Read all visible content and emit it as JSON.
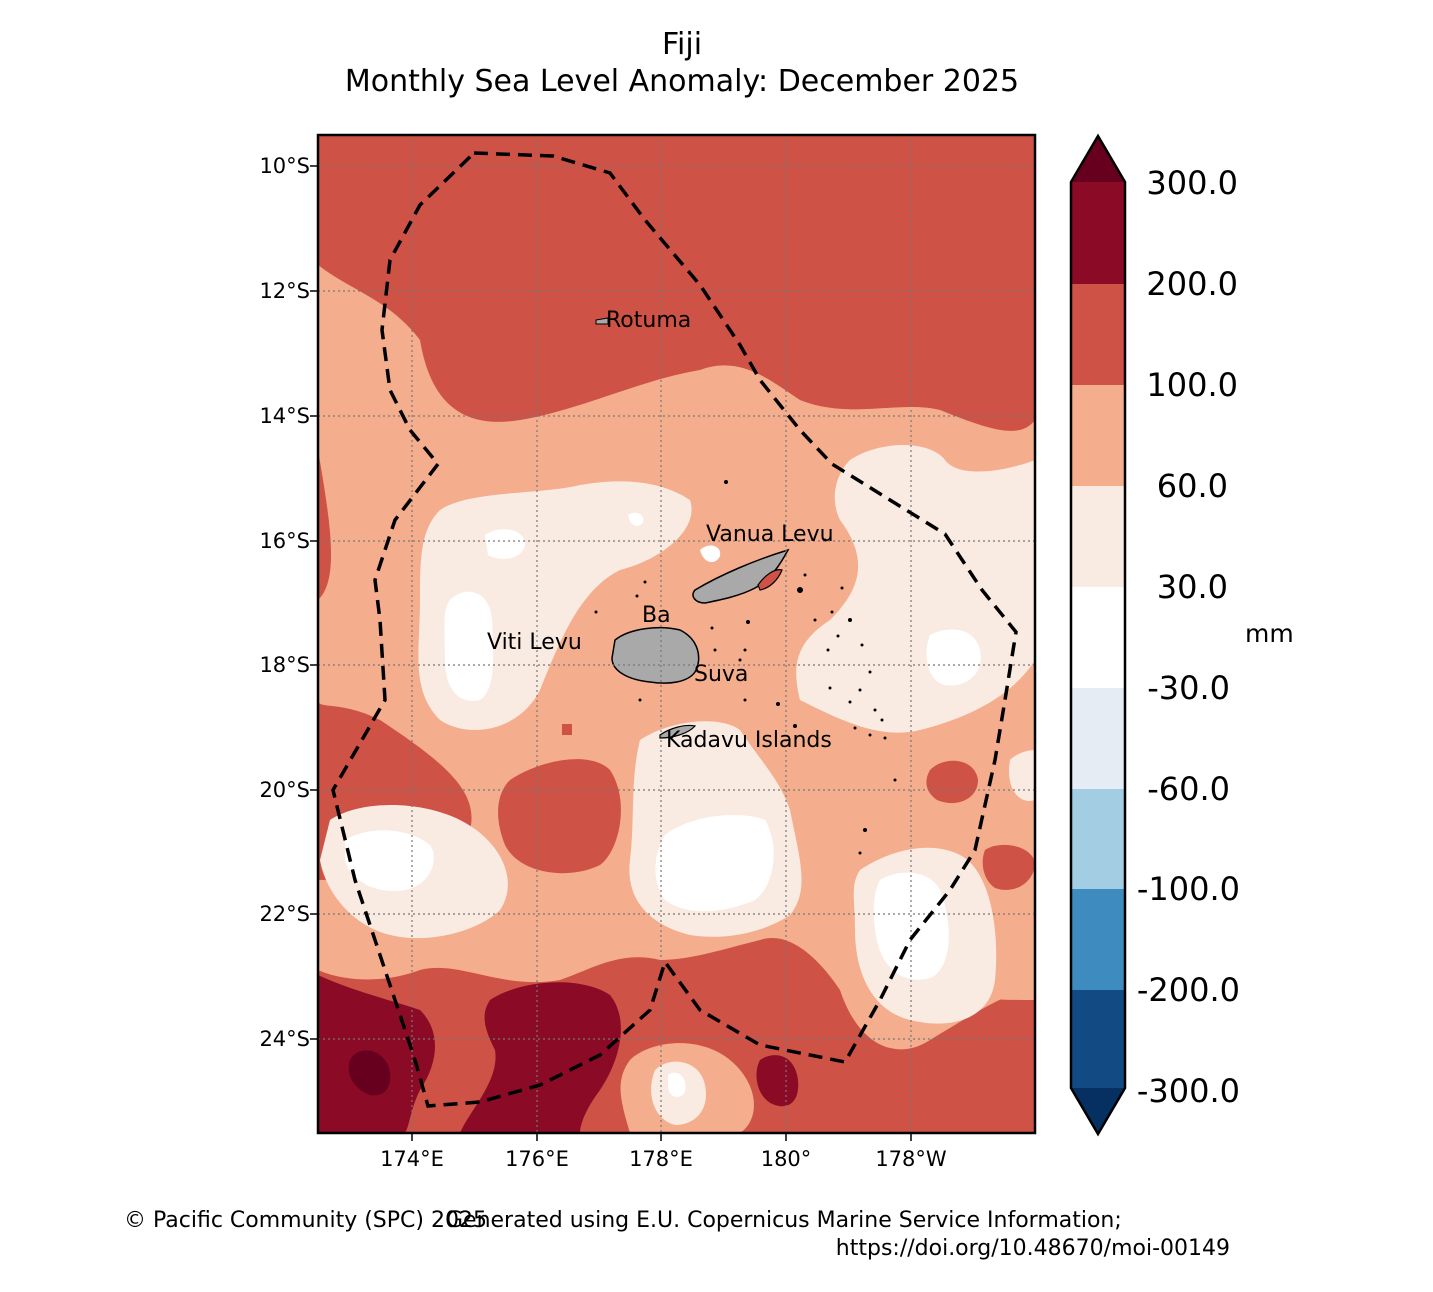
{
  "title": {
    "line1": "Fiji",
    "line2": "Monthly Sea Level Anomaly: December 2025"
  },
  "map": {
    "lat_ticks": [
      "10°S",
      "12°S",
      "14°S",
      "16°S",
      "18°S",
      "20°S",
      "22°S",
      "24°S"
    ],
    "lon_ticks": [
      "174°E",
      "176°E",
      "178°E",
      "180°",
      "178°W"
    ],
    "places": {
      "rotuma": "Rotuma",
      "vanua_levu": "Vanua Levu",
      "ba": "Ba",
      "viti_levu": "Viti Levu",
      "suva": "Suva",
      "kadavu": "Kadavu Islands"
    }
  },
  "colorbar": {
    "unit": "mm",
    "labels": [
      "300.0",
      "200.0",
      "100.0",
      "60.0",
      "30.0",
      "-30.0",
      "-60.0",
      "-100.0",
      "-200.0",
      "-300.0"
    ],
    "colors": {
      "over": "#67001f",
      "c200_300": "#8b0a26",
      "c100_200": "#ce5245",
      "c60_100": "#f4ad8d",
      "c30_60": "#faebe2",
      "cm30_30": "#ffffff",
      "cm60_m30": "#e5ecf4",
      "cm100_m60": "#a2cde2",
      "cm200_m100": "#3d8bbf",
      "cm300_m200": "#124a84",
      "under": "#053061"
    }
  },
  "footer": {
    "copyright": "© Pacific Community (SPC) 2025",
    "source": "Generated using E.U. Copernicus Marine Service Information;",
    "doi": "https://doi.org/10.48670/moi-00149"
  }
}
